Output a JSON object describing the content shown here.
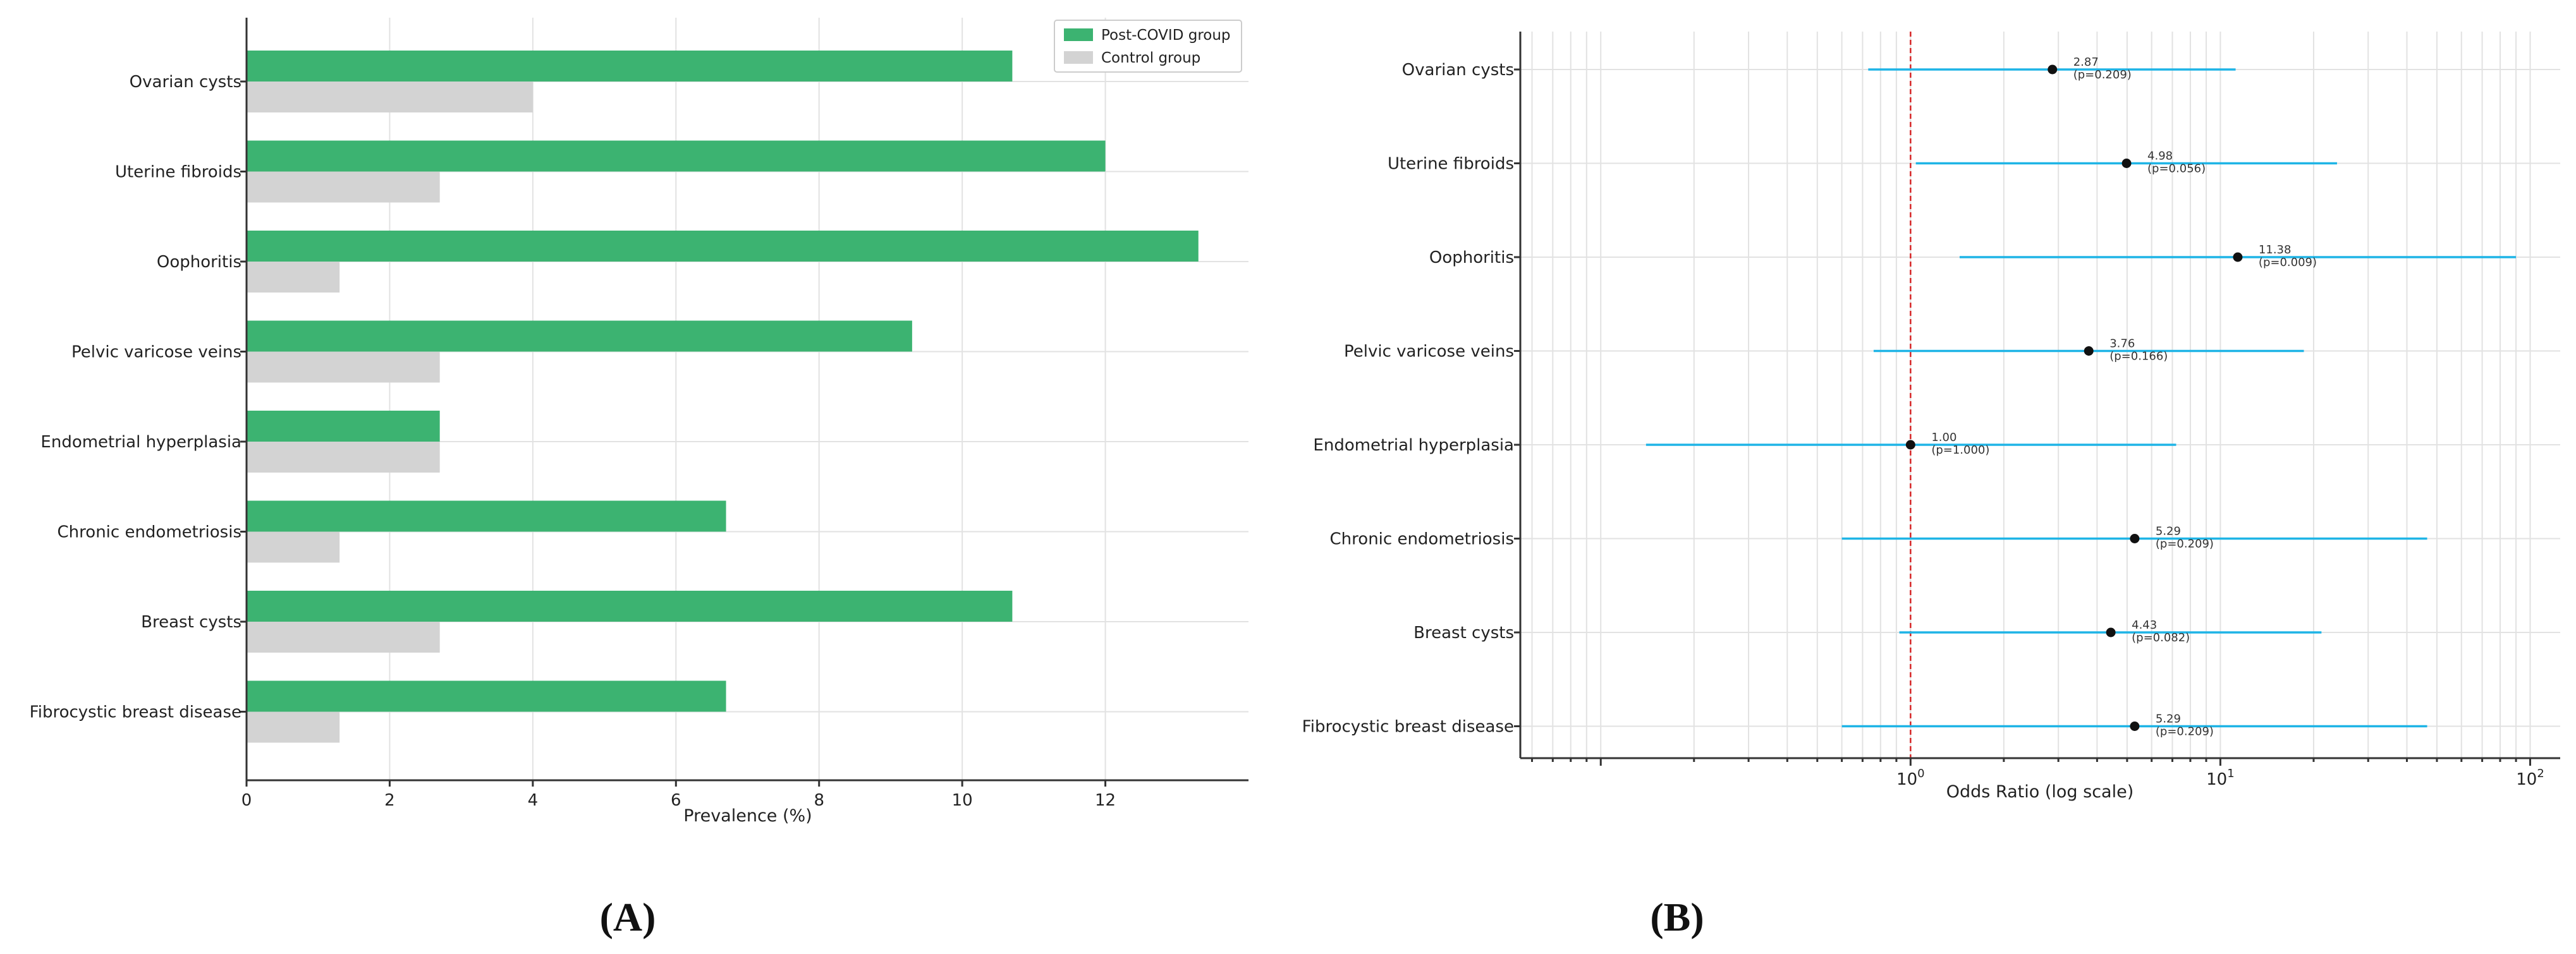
{
  "chart_data": [
    {
      "panel": "(A)",
      "type": "bar",
      "orientation": "horizontal",
      "categories": [
        "Ovarian cysts",
        "Uterine fibroids",
        "Oophoritis",
        "Pelvic varicose veins",
        "Endometrial hyperplasia",
        "Chronic endometriosis",
        "Breast cysts",
        "Fibrocystic breast disease"
      ],
      "series": [
        {
          "name": "Post-COVID group",
          "color": "#3cb371",
          "values": [
            10.7,
            12.0,
            13.3,
            9.3,
            2.7,
            6.7,
            10.7,
            6.7
          ]
        },
        {
          "name": "Control group",
          "color": "#d3d3d3",
          "values": [
            4.0,
            2.7,
            1.3,
            2.7,
            2.7,
            1.3,
            2.7,
            1.3
          ]
        }
      ],
      "xlabel": "Prevalence (%)",
      "ylabel": "",
      "xlim": [
        0,
        14
      ],
      "xticks": [
        0,
        2,
        4,
        6,
        8,
        10,
        12
      ],
      "xtick_labels": [
        "0",
        "2",
        "4",
        "6",
        "8",
        "10",
        "12"
      ],
      "legend_position": "top-right",
      "grid": true
    },
    {
      "panel": "(B)",
      "type": "forest",
      "categories": [
        "Ovarian cysts",
        "Uterine fibroids",
        "Oophoritis",
        "Pelvic varicose veins",
        "Endometrial hyperplasia",
        "Chronic endometriosis",
        "Breast cysts",
        "Fibrocystic breast disease"
      ],
      "odds_ratio": [
        2.87,
        4.98,
        11.38,
        3.76,
        1.0,
        5.29,
        4.43,
        5.29
      ],
      "ci_lower": [
        0.73,
        1.04,
        1.44,
        0.76,
        0.14,
        0.6,
        0.92,
        0.6
      ],
      "ci_upper": [
        11.2,
        23.8,
        90.0,
        18.6,
        7.2,
        46.5,
        21.2,
        46.5
      ],
      "or_labels": [
        "2.87",
        "4.98",
        "11.38",
        "3.76",
        "1.00",
        "5.29",
        "4.43",
        "5.29"
      ],
      "p_labels": [
        "(p=0.209)",
        "(p=0.056)",
        "(p=0.009)",
        "(p=0.166)",
        "(p=1.000)",
        "(p=0.209)",
        "(p=0.082)",
        "(p=0.209)"
      ],
      "xlabel": "Odds Ratio (log scale)",
      "xscale": "log",
      "xlim": [
        0.055,
        125
      ],
      "xticks": [
        1,
        10,
        100
      ],
      "xtick_base": "10",
      "xtick_exponents": [
        "0",
        "1",
        "2"
      ],
      "reference_line": 1,
      "ci_color": "#1eb4e6",
      "reference_color": "#d62728",
      "grid": true
    }
  ]
}
